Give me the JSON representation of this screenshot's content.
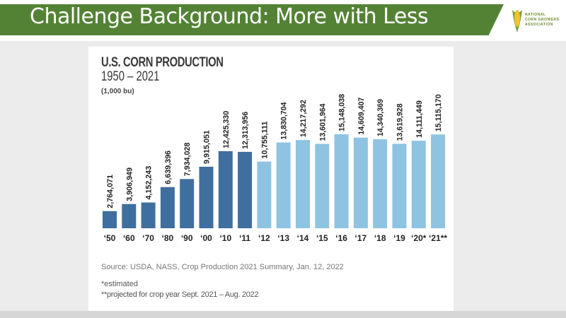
{
  "slide": {
    "title": "Challenge Background: More with Less",
    "logo_text": [
      "NATIONAL",
      "CORN GROWERS",
      "ASSOCIATION"
    ]
  },
  "chart_data": {
    "type": "bar",
    "title": "U.S. CORN PRODUCTION",
    "subtitle": "1950 – 2021",
    "ylabel": "(1,000 bu)",
    "xlabel": "",
    "categories": [
      "‘50",
      "‘60",
      "‘70",
      "‘80",
      "‘90",
      "‘00",
      "‘10",
      "‘11",
      "‘12",
      "‘13",
      "‘14",
      "‘15",
      "‘16",
      "‘17",
      "‘18",
      "‘19",
      "‘20*",
      "‘21**"
    ],
    "values": [
      2764071,
      3906949,
      4152243,
      6639396,
      7934028,
      9915051,
      12425330,
      12313956,
      10755111,
      13830704,
      14217292,
      13601964,
      15148038,
      14609407,
      14340369,
      13619928,
      14111449,
      15115170
    ],
    "labels": [
      "2,764,071",
      "3,906,949",
      "4,152,243",
      "6,639,396",
      "7,934,028",
      "9,915,051",
      "12,425,330",
      "12,313,956",
      "10,755,111",
      "13,830,704",
      "14,217,292",
      "13,601,964",
      "15,148,038",
      "14,609,407",
      "14,340,369",
      "13,619,928",
      "14,111,449",
      "15,115,170"
    ],
    "ylim": [
      0,
      15148038
    ],
    "grid": false,
    "colors": {
      "historic": "#3f6f9e",
      "recent": "#8ec4e2"
    },
    "recent_from_index": 8,
    "source": "Source: USDA, NASS, Crop Production 2021 Summary, Jan. 12, 2022",
    "notes": [
      "*estimated",
      "**projected for crop year Sept. 2021 – Aug. 2022"
    ]
  }
}
